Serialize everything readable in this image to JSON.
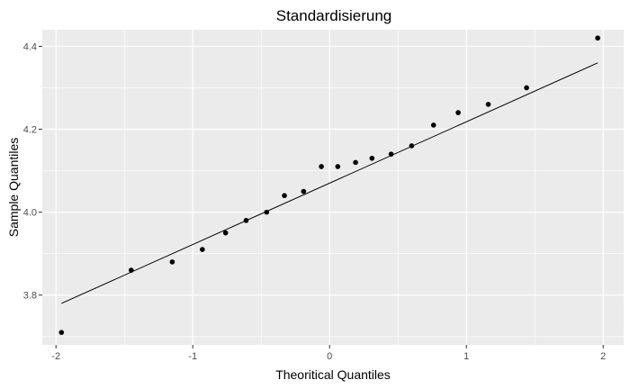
{
  "chart_data": {
    "type": "scatter",
    "title": "Standardisierung",
    "xlabel": "Theoritical Quantiles",
    "ylabel": "Sample Quantiles",
    "xlim": [
      -2.1,
      2.15
    ],
    "ylim": [
      3.68,
      4.44
    ],
    "x_ticks": [
      -2,
      -1,
      0,
      1,
      2
    ],
    "x_tick_labels": [
      "-2",
      "-1",
      "0",
      "1",
      "2"
    ],
    "y_ticks": [
      3.8,
      4.0,
      4.2,
      4.4
    ],
    "y_tick_labels": [
      "3.8",
      "4.0",
      "4.2",
      "4.4"
    ],
    "grid": true,
    "points": [
      {
        "x": -1.96,
        "y": 3.71
      },
      {
        "x": -1.45,
        "y": 3.86
      },
      {
        "x": -1.15,
        "y": 3.88
      },
      {
        "x": -0.93,
        "y": 3.91
      },
      {
        "x": -0.76,
        "y": 3.95
      },
      {
        "x": -0.61,
        "y": 3.98
      },
      {
        "x": -0.46,
        "y": 4.0
      },
      {
        "x": -0.33,
        "y": 4.04
      },
      {
        "x": -0.19,
        "y": 4.05
      },
      {
        "x": -0.06,
        "y": 4.11
      },
      {
        "x": 0.06,
        "y": 4.11
      },
      {
        "x": 0.19,
        "y": 4.12
      },
      {
        "x": 0.31,
        "y": 4.13
      },
      {
        "x": 0.45,
        "y": 4.14
      },
      {
        "x": 0.6,
        "y": 4.16
      },
      {
        "x": 0.76,
        "y": 4.21
      },
      {
        "x": 0.94,
        "y": 4.24
      },
      {
        "x": 1.16,
        "y": 4.26
      },
      {
        "x": 1.44,
        "y": 4.3
      },
      {
        "x": 1.96,
        "y": 4.42
      }
    ],
    "reference_line": [
      {
        "x": -1.96,
        "y": 3.78
      },
      {
        "x": 1.96,
        "y": 4.36
      }
    ],
    "colors": {
      "panel_background": "#ebebeb",
      "grid_major": "#ffffff",
      "points": "#000000",
      "line": "#000000"
    }
  }
}
